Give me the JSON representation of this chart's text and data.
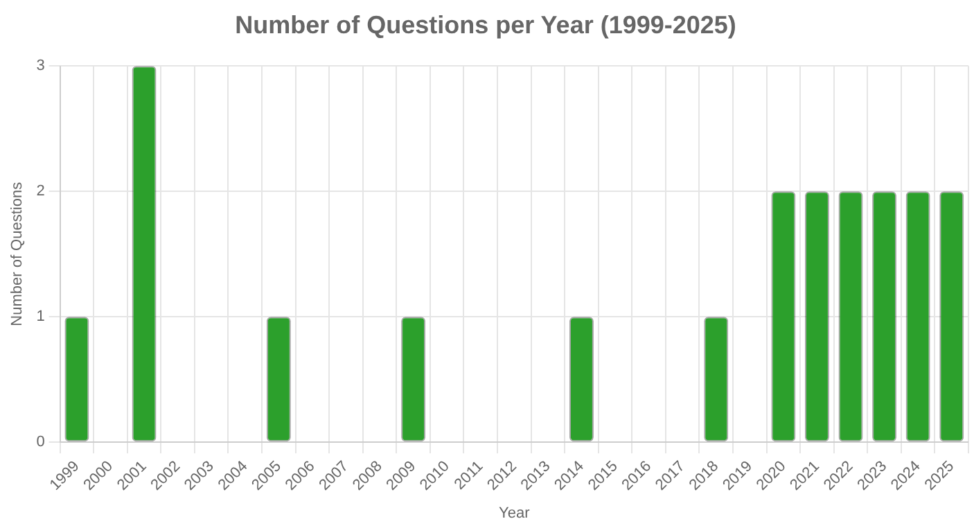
{
  "chart_data": {
    "type": "bar",
    "title": "Number of Questions per Year (1999-2025)",
    "xlabel": "Year",
    "ylabel": "Number of Questions",
    "categories": [
      "1999",
      "2000",
      "2001",
      "2002",
      "2003",
      "2004",
      "2005",
      "2006",
      "2007",
      "2008",
      "2009",
      "2010",
      "2011",
      "2012",
      "2013",
      "2014",
      "2015",
      "2016",
      "2017",
      "2018",
      "2019",
      "2020",
      "2021",
      "2022",
      "2023",
      "2024",
      "2025"
    ],
    "values": [
      1,
      0,
      3,
      0,
      0,
      0,
      1,
      0,
      0,
      0,
      1,
      0,
      0,
      0,
      0,
      1,
      0,
      0,
      0,
      1,
      0,
      2,
      2,
      2,
      2,
      2,
      2
    ],
    "color": "#2ca02c",
    "ylim": [
      0,
      3
    ],
    "yticks": [
      0,
      1,
      2,
      3
    ],
    "grid": true,
    "legend": false
  }
}
